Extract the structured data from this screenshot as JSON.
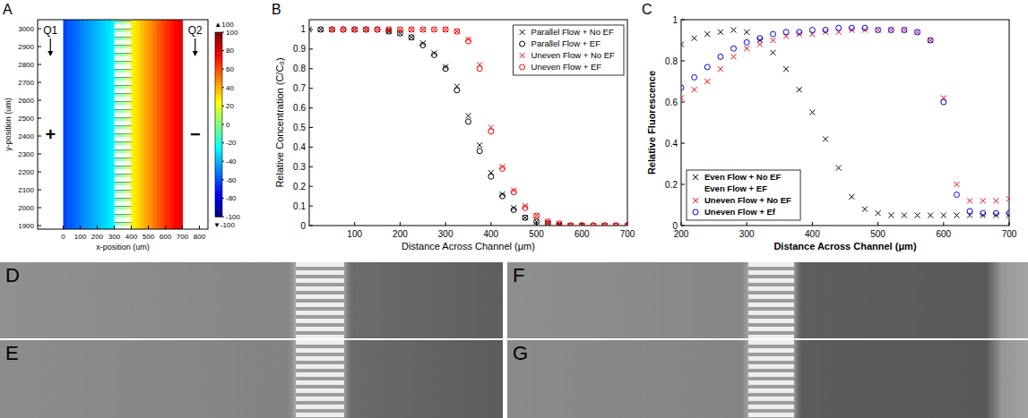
{
  "panel_labels": [
    "A",
    "B",
    "C"
  ],
  "image_labels": [
    "D",
    "E",
    "F",
    "G"
  ],
  "chart_data": [
    {
      "type": "heatmap",
      "x_label": "x-position (um)",
      "y_label": "y-position (um)",
      "xlim": [
        -150,
        850
      ],
      "xticks": [
        0,
        100,
        200,
        300,
        400,
        500,
        600,
        700,
        800
      ],
      "ylim": [
        1880,
        3050
      ],
      "yticks": [
        1900,
        2000,
        2100,
        2200,
        2300,
        2400,
        2500,
        2600,
        2700,
        2800,
        2900,
        3000
      ],
      "cells": {
        "x_edges": [
          0,
          25,
          50,
          75,
          100,
          125,
          150,
          175,
          200,
          225,
          250,
          275,
          300,
          325,
          350,
          375,
          400,
          425,
          450,
          475,
          500,
          525,
          550,
          575,
          600,
          625,
          650,
          675,
          700
        ],
        "values": [
          -62,
          -58,
          -55,
          -52,
          -49,
          -46,
          -43,
          -40,
          -37,
          -34,
          -31,
          -28,
          -15,
          -5,
          5,
          15,
          28,
          32,
          37,
          42,
          47,
          52,
          57,
          62,
          67,
          71,
          75,
          79
        ]
      },
      "membrane_x": [
        300,
        400
      ],
      "colorbar": {
        "range": [
          -100,
          100
        ],
        "ticks": [
          -100,
          -80,
          -60,
          -40,
          -20,
          0,
          20,
          40,
          60,
          80,
          100
        ],
        "extremes": [
          {
            "value": 100,
            "label": "▲100"
          },
          {
            "value": -100,
            "label": "▼-100"
          }
        ]
      },
      "annotations": [
        "Q1",
        "Q2",
        "+",
        "−"
      ]
    },
    {
      "type": "scatter",
      "x_label": "Distance Across Channel (μm)",
      "y_label": "Relative Concentration (C/C₀)",
      "xlim": [
        0,
        700
      ],
      "xticks": [
        100,
        200,
        300,
        400,
        500,
        600,
        700
      ],
      "ylim": [
        0,
        1.05
      ],
      "yticks": [
        0,
        0.1,
        0.2,
        0.3,
        0.4,
        0.5,
        0.6,
        0.7,
        0.8,
        0.9,
        1
      ],
      "legend": "upper right",
      "x": [
        0,
        25,
        50,
        75,
        100,
        125,
        150,
        175,
        200,
        225,
        250,
        275,
        300,
        325,
        350,
        375,
        400,
        425,
        450,
        475,
        500,
        525,
        550,
        575,
        600,
        625,
        650,
        675,
        700
      ],
      "series": [
        {
          "name": "Parallel Flow + No EF",
          "color": "#000000",
          "marker": "x",
          "values": [
            1,
            1,
            1,
            1,
            1,
            1,
            1,
            0.99,
            0.98,
            0.96,
            0.93,
            0.88,
            0.81,
            0.71,
            0.56,
            0.41,
            0.27,
            0.16,
            0.09,
            0.04,
            0.02,
            0.01,
            0,
            0,
            0,
            0,
            0,
            0,
            0
          ]
        },
        {
          "name": "Parallel Flow + EF",
          "color": "#000000",
          "marker": "o",
          "values": [
            null,
            1,
            1,
            1,
            1,
            1,
            1,
            0.99,
            0.98,
            0.96,
            0.92,
            0.87,
            0.8,
            0.69,
            0.53,
            0.38,
            0.25,
            0.15,
            0.08,
            0.04,
            0.02,
            0.01,
            0,
            0,
            0,
            0,
            0,
            0,
            0
          ]
        },
        {
          "name": "Uneven Flow + No EF",
          "color": "#ff0000",
          "marker": "x",
          "values": [
            null,
            null,
            1,
            1,
            1,
            1,
            1,
            1,
            1,
            1,
            1,
            1,
            1,
            0.99,
            0.95,
            0.82,
            0.5,
            0.3,
            0.18,
            0.1,
            0.05,
            0.02,
            0.01,
            0,
            0,
            0,
            0,
            0,
            0
          ]
        },
        {
          "name": "Uneven Flow + EF",
          "color": "#ff0000",
          "marker": "o",
          "values": [
            null,
            null,
            1,
            1,
            1,
            1,
            1,
            1,
            1,
            1,
            1,
            1,
            1,
            0.99,
            0.94,
            0.8,
            0.48,
            0.29,
            0.17,
            0.09,
            0.05,
            0.02,
            0.01,
            0,
            0,
            0,
            0,
            0,
            0
          ]
        }
      ]
    },
    {
      "type": "scatter",
      "x_label": "Distance Across Channel (μm)",
      "y_label": "Relative Fluorescence",
      "xlim": [
        200,
        700
      ],
      "xticks": [
        200,
        300,
        400,
        500,
        600,
        700
      ],
      "ylim": [
        0,
        1
      ],
      "yticks": [
        0,
        0.2,
        0.4,
        0.6,
        0.8,
        1
      ],
      "legend": "lower left",
      "x": [
        200,
        220,
        240,
        260,
        280,
        300,
        320,
        340,
        360,
        380,
        400,
        420,
        440,
        460,
        480,
        500,
        520,
        540,
        560,
        580,
        600,
        620,
        640,
        660,
        680,
        700
      ],
      "series": [
        {
          "name": "Even Flow + No EF",
          "color": "#000000",
          "marker": "x",
          "values": [
            0.88,
            0.91,
            0.93,
            0.94,
            0.95,
            0.94,
            0.9,
            0.84,
            0.76,
            0.66,
            0.55,
            0.42,
            0.28,
            0.14,
            0.08,
            0.06,
            0.05,
            0.05,
            0.05,
            0.05,
            0.05,
            0.05,
            0.05,
            0.05,
            0.05,
            0.05
          ]
        },
        {
          "name": "Even Flow + EF",
          "color": "#000000",
          "marker": "none",
          "values": [
            null,
            null,
            null,
            null,
            null,
            null,
            null,
            null,
            null,
            null,
            null,
            null,
            null,
            null,
            null,
            null,
            null,
            null,
            null,
            null,
            null,
            null,
            null,
            null,
            null,
            null
          ]
        },
        {
          "name": "Uneven Flow + No EF",
          "color": "#ff0000",
          "marker": "x",
          "values": [
            0.62,
            0.66,
            0.7,
            0.76,
            0.82,
            0.86,
            0.88,
            0.9,
            0.92,
            0.93,
            0.93,
            0.94,
            0.94,
            0.95,
            0.95,
            0.95,
            0.95,
            0.95,
            0.94,
            0.9,
            0.62,
            0.2,
            0.12,
            0.12,
            0.12,
            0.13
          ]
        },
        {
          "name": "Uneven Flow + Ef",
          "color": "#0000ff",
          "marker": "o",
          "values": [
            0.67,
            0.72,
            0.77,
            0.82,
            0.86,
            0.89,
            0.91,
            0.93,
            0.94,
            0.94,
            0.95,
            0.95,
            0.96,
            0.96,
            0.96,
            0.95,
            0.95,
            0.95,
            0.94,
            0.9,
            0.6,
            0.15,
            0.07,
            0.06,
            0.06,
            0.06
          ]
        }
      ]
    }
  ]
}
